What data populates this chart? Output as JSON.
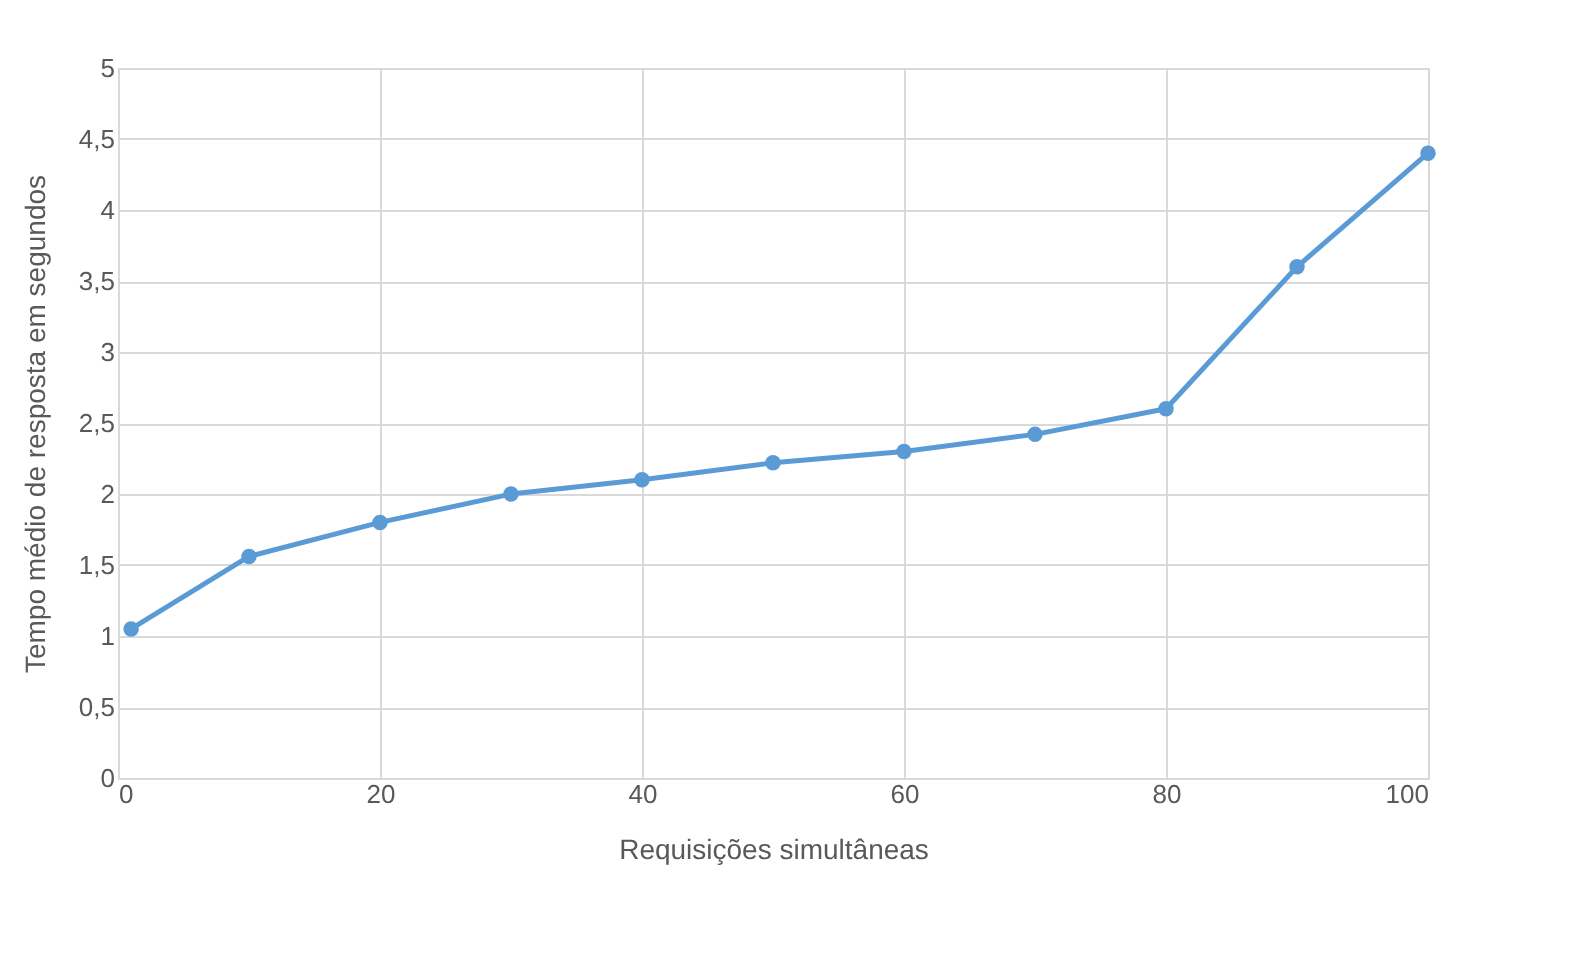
{
  "chart_data": {
    "type": "line",
    "xlabel": "Requisições simultâneas",
    "ylabel": "Tempo médio de resposta em segundos",
    "x": [
      1,
      10,
      20,
      30,
      40,
      50,
      60,
      70,
      80,
      90,
      100
    ],
    "series": [
      {
        "color": "#5b9bd5",
        "values": [
          1.05,
          1.56,
          1.8,
          2.0,
          2.1,
          2.22,
          2.3,
          2.42,
          2.6,
          3.6,
          4.4
        ]
      }
    ],
    "xlim": [
      0,
      100
    ],
    "xticks": [
      0,
      20,
      40,
      60,
      80,
      100
    ],
    "ylim": [
      0,
      5
    ],
    "yticks": [
      0,
      {
        "value": 0.5,
        "label": "0,5"
      },
      1,
      {
        "value": 1.5,
        "label": "1,5"
      },
      2,
      {
        "value": 2.5,
        "label": "2,5"
      },
      3,
      {
        "value": 3.5,
        "label": "3,5"
      },
      4,
      {
        "value": 4.5,
        "label": "4,5"
      },
      5
    ],
    "grid": true,
    "marker": "circle",
    "line_style": "solid"
  }
}
